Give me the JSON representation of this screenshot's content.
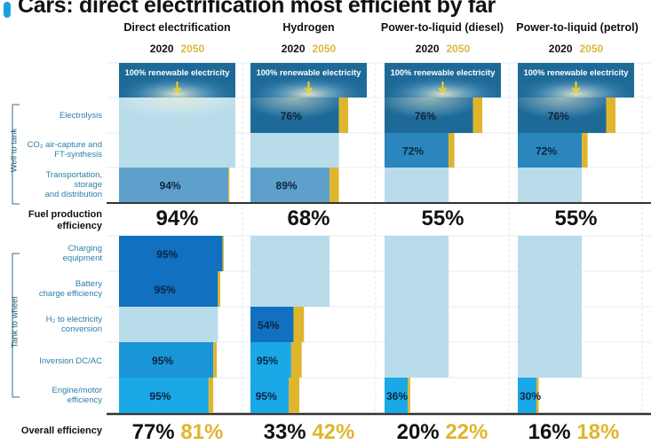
{
  "chart_data": {
    "type": "bar",
    "title": "Cars: direct electrification most efficient by far",
    "years": [
      "2020",
      "2050"
    ],
    "source_label": "100% renewable electricity",
    "groups": [
      {
        "name": "Well to tank",
        "steps": [
          "Electrolysis",
          "CO2 air-capture and FT-synthesis",
          "Transportation, storage and distribution"
        ]
      },
      {
        "name": "Tank to wheel",
        "steps": [
          "Charging equipment",
          "Battery charge efficiency",
          "H2 to electricity conversion",
          "Inversion DC/AC",
          "Engine/motor efficiency"
        ]
      }
    ],
    "row_labels": [
      {
        "id": "electrolysis",
        "lines": [
          "Electrolysis"
        ]
      },
      {
        "id": "co2",
        "lines": [
          "CO₂ air-capture and",
          "FT-synthesis"
        ]
      },
      {
        "id": "transport",
        "lines": [
          "Transportation,",
          "storage",
          "and distribution"
        ]
      },
      {
        "id": "charging",
        "lines": [
          "Charging",
          "equipment"
        ]
      },
      {
        "id": "battery",
        "lines": [
          "Battery",
          "charge efficiency"
        ]
      },
      {
        "id": "h2conv",
        "lines": [
          "H₂ to electricity",
          "conversion"
        ]
      },
      {
        "id": "inversion",
        "lines": [
          "Inversion DC/AC"
        ]
      },
      {
        "id": "engine",
        "lines": [
          "Engine/motor",
          "efficiency"
        ]
      }
    ],
    "fuel_production_label": [
      "Fuel production",
      "efficiency"
    ],
    "overall_label": "Overall efficiency",
    "pathways": [
      {
        "name": "Direct electrification",
        "steps": {
          "electrolysis": null,
          "co2": null,
          "transport": 94,
          "charging": 95,
          "battery": 95,
          "h2conv": null,
          "inversion": 95,
          "engine": 95
        },
        "cumulative_2020": {
          "electrolysis": 100,
          "co2": 100,
          "transport": 94,
          "charging": 89,
          "battery": 85,
          "h2conv": 85,
          "inversion": 81,
          "engine": 77
        },
        "gain_2050": {
          "transport": 1,
          "charging": 1,
          "battery": 2,
          "inversion": 3,
          "engine": 4
        },
        "fuel_production": "94%",
        "overall_2020": "77%",
        "overall_2050": "81%"
      },
      {
        "name": "Hydrogen",
        "steps": {
          "electrolysis": 76,
          "co2": null,
          "transport": 89,
          "charging": null,
          "battery": null,
          "h2conv": 54,
          "inversion": 95,
          "engine": 95
        },
        "cumulative_2020": {
          "electrolysis": 76,
          "co2": 76,
          "transport": 68,
          "charging": 68,
          "battery": 68,
          "h2conv": 37,
          "inversion": 35,
          "engine": 33
        },
        "gain_2050": {
          "electrolysis": 8,
          "transport": 8,
          "h2conv": 9,
          "inversion": 9,
          "engine": 9
        },
        "fuel_production": "68%",
        "overall_2020": "33%",
        "overall_2050": "42%"
      },
      {
        "name": "Power-to-liquid (diesel)",
        "steps": {
          "electrolysis": 76,
          "co2": 72,
          "transport": null,
          "charging": null,
          "battery": null,
          "h2conv": null,
          "inversion": null,
          "engine": 36
        },
        "cumulative_2020": {
          "electrolysis": 76,
          "co2": 55,
          "transport": 55,
          "charging": 55,
          "battery": 55,
          "h2conv": 55,
          "inversion": 55,
          "engine": 20
        },
        "gain_2050": {
          "electrolysis": 8,
          "co2": 5,
          "engine": 2
        },
        "fuel_production": "55%",
        "overall_2020": "20%",
        "overall_2050": "22%"
      },
      {
        "name": "Power-to-liquid (petrol)",
        "steps": {
          "electrolysis": 76,
          "co2": 72,
          "transport": null,
          "charging": null,
          "battery": null,
          "h2conv": null,
          "inversion": null,
          "engine": 30
        },
        "cumulative_2020": {
          "electrolysis": 76,
          "co2": 55,
          "transport": 55,
          "charging": 55,
          "battery": 55,
          "h2conv": 55,
          "inversion": 55,
          "engine": 16
        },
        "gain_2050": {
          "electrolysis": 8,
          "co2": 5,
          "engine": 2
        },
        "fuel_production": "55%",
        "overall_2020": "16%",
        "overall_2050": "18%"
      }
    ],
    "colors": {
      "source": "#1d6a98",
      "wtt_active": "#2b86bd",
      "transport_active": "#5ea0cc",
      "ttw_dark": "#1170bf",
      "ttw_mid": "#1a95d6",
      "ttw_light": "#1aa8e6",
      "carry": "#b9dcea",
      "gain_2050": "#e0b52e",
      "accent": "#1aa0df"
    }
  }
}
